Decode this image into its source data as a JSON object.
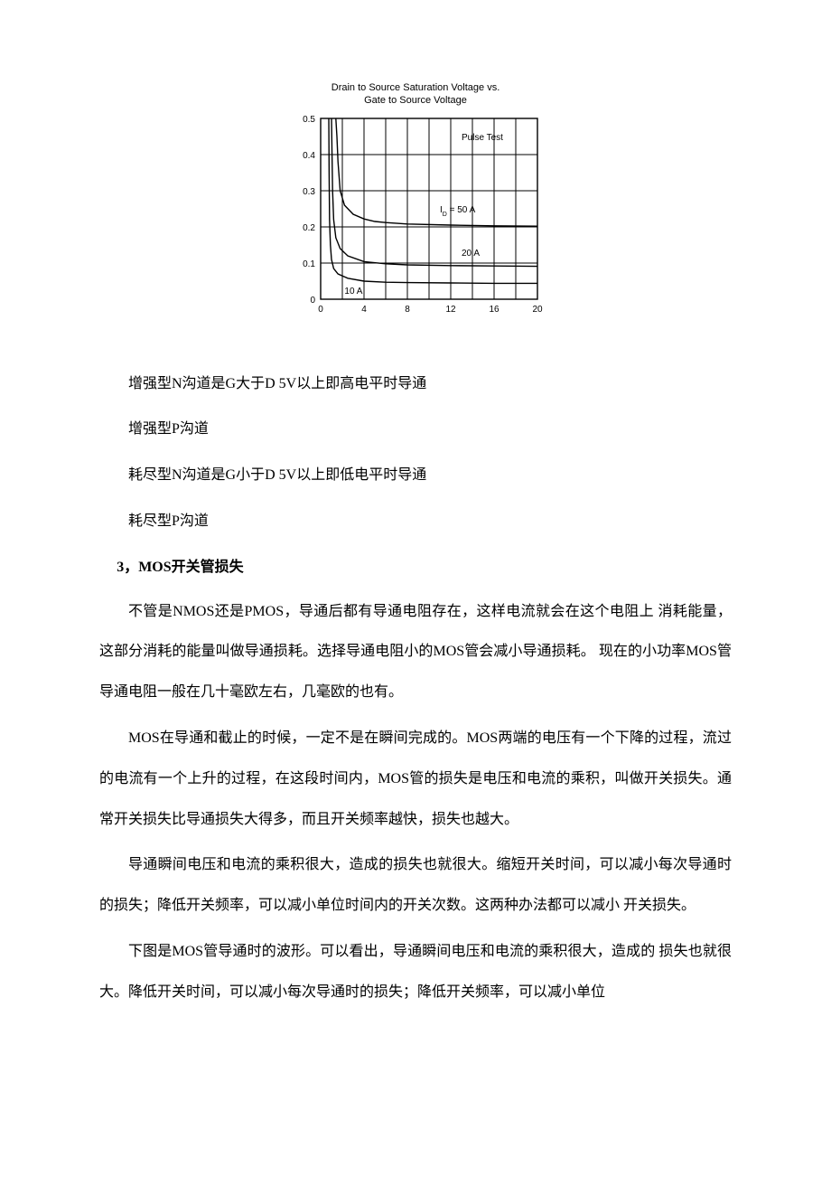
{
  "chart": {
    "title_line1": "Drain to Source Saturation Voltage vs.",
    "title_line2": "Gate to Source Voltage",
    "annotation_pulse": "Pulse Test",
    "annotation_id": "I",
    "annotation_id_sub": "D",
    "annotation_id_val": " = 50 A",
    "annotation_20a": "20 A",
    "annotation_10a": "10 A",
    "x_ticks": [
      "0",
      "4",
      "8",
      "12",
      "16",
      "20"
    ],
    "y_ticks": [
      "0",
      "0.1",
      "0.2",
      "0.3",
      "0.4",
      "0.5"
    ],
    "xlim": [
      0,
      20
    ],
    "ylim": [
      0,
      0.5
    ],
    "grid_color": "#000000",
    "line_color": "#000000",
    "background_color": "#ffffff",
    "font_family": "Arial",
    "tick_fontsize": 10,
    "title_fontsize": 11,
    "annotation_fontsize": 10,
    "line_width": 1.4,
    "curves": {
      "50A": [
        [
          1.4,
          0.5
        ],
        [
          1.5,
          0.45
        ],
        [
          1.6,
          0.38
        ],
        [
          1.8,
          0.3
        ],
        [
          2.2,
          0.26
        ],
        [
          3,
          0.235
        ],
        [
          4,
          0.222
        ],
        [
          5,
          0.215
        ],
        [
          6,
          0.212
        ],
        [
          8,
          0.208
        ],
        [
          12,
          0.205
        ],
        [
          16,
          0.203
        ],
        [
          20,
          0.202
        ]
      ],
      "20A": [
        [
          1.0,
          0.5
        ],
        [
          1.05,
          0.4
        ],
        [
          1.1,
          0.3
        ],
        [
          1.2,
          0.22
        ],
        [
          1.4,
          0.17
        ],
        [
          1.8,
          0.14
        ],
        [
          2.5,
          0.12
        ],
        [
          4,
          0.104
        ],
        [
          6,
          0.098
        ],
        [
          8,
          0.095
        ],
        [
          12,
          0.093
        ],
        [
          16,
          0.092
        ],
        [
          20,
          0.091
        ]
      ],
      "10A": [
        [
          0.75,
          0.5
        ],
        [
          0.78,
          0.35
        ],
        [
          0.82,
          0.22
        ],
        [
          0.9,
          0.15
        ],
        [
          1.0,
          0.11
        ],
        [
          1.2,
          0.085
        ],
        [
          1.6,
          0.07
        ],
        [
          2.5,
          0.058
        ],
        [
          4,
          0.05
        ],
        [
          6,
          0.047
        ],
        [
          8,
          0.046
        ],
        [
          12,
          0.045
        ],
        [
          16,
          0.044
        ],
        [
          20,
          0.044
        ]
      ]
    }
  },
  "body": {
    "p1": "增强型N沟道是G大于D 5V以上即高电平时导通",
    "p2": "增强型P沟道",
    "p3": "耗尽型N沟道是G小于D 5V以上即低电平时导通",
    "p4": "耗尽型P沟道",
    "h3": "3，MOS开关管损失",
    "p5": "不管是NMOS还是PMOS，导通后都有导通电阻存在，这样电流就会在这个电阻上 消耗能量，这部分消耗的能量叫做导通损耗。选择导通电阻小的MOS管会减小导通损耗。 现在的小功率MOS管导通电阻一般在几十毫欧左右，几毫欧的也有。",
    "p6": "MOS在导通和截止的时候，一定不是在瞬间完成的。MOS两端的电压有一个下降的过程，流过的电流有一个上升的过程，在这段时间内，MOS管的损失是电压和电流的乘积，叫做开关损失。通常开关损失比导通损失大得多，而且开关频率越快，损失也越大。",
    "p7": "导通瞬间电压和电流的乘积很大，造成的损失也就很大。缩短开关时间，可以减小每次导通时的损失；降低开关频率，可以减小单位时间内的开关次数。这两种办法都可以减小 开关损失。",
    "p8": "下图是MOS管导通时的波形。可以看出，导通瞬间电压和电流的乘积很大，造成的 损失也就很大。降低开关时间，可以减小每次导通时的损失；降低开关频率，可以减小单位"
  }
}
